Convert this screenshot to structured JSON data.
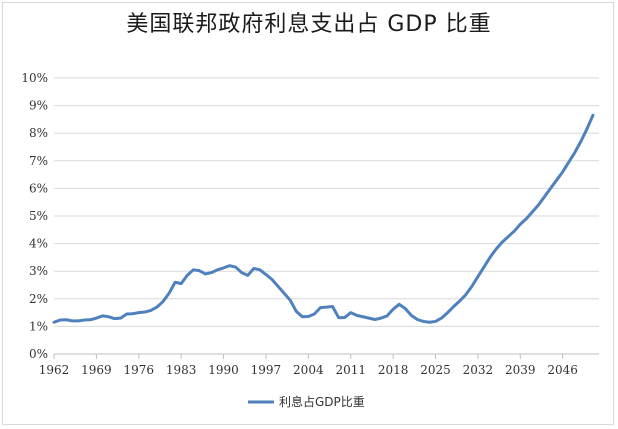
{
  "title": "美国联邦政府利息支出占 GDP 比重",
  "chart_data": {
    "type": "line",
    "title": "美国联邦政府利息支出占 GDP 比重",
    "xlabel": "",
    "ylabel": "",
    "xlim": [
      1962,
      2052
    ],
    "ylim": [
      0,
      10
    ],
    "y_ticks": [
      "0%",
      "1%",
      "2%",
      "3%",
      "4%",
      "5%",
      "6%",
      "7%",
      "8%",
      "9%",
      "10%"
    ],
    "x_ticks": [
      "1962",
      "1969",
      "1976",
      "1983",
      "1990",
      "1997",
      "2004",
      "2011",
      "2018",
      "2025",
      "2032",
      "2039",
      "2046"
    ],
    "grid": "horizontal",
    "legend": "bottom",
    "series": [
      {
        "name": "利息占GDP比重",
        "color": "#4f81bd",
        "x": [
          1962,
          1963,
          1964,
          1965,
          1966,
          1967,
          1968,
          1969,
          1970,
          1971,
          1972,
          1973,
          1974,
          1975,
          1976,
          1977,
          1978,
          1979,
          1980,
          1981,
          1982,
          1983,
          1984,
          1985,
          1986,
          1987,
          1988,
          1989,
          1990,
          1991,
          1992,
          1993,
          1994,
          1995,
          1996,
          1997,
          1998,
          1999,
          2000,
          2001,
          2002,
          2003,
          2004,
          2005,
          2006,
          2007,
          2008,
          2009,
          2010,
          2011,
          2012,
          2013,
          2014,
          2015,
          2016,
          2017,
          2018,
          2019,
          2020,
          2021,
          2022,
          2023,
          2024,
          2025,
          2026,
          2027,
          2028,
          2029,
          2030,
          2031,
          2032,
          2033,
          2034,
          2035,
          2036,
          2037,
          2038,
          2039,
          2040,
          2041,
          2042,
          2043,
          2044,
          2045,
          2046,
          2047,
          2048,
          2049,
          2050,
          2051
        ],
        "values": [
          1.15,
          1.23,
          1.24,
          1.2,
          1.2,
          1.23,
          1.24,
          1.3,
          1.38,
          1.35,
          1.28,
          1.3,
          1.45,
          1.46,
          1.5,
          1.52,
          1.58,
          1.7,
          1.9,
          2.2,
          2.6,
          2.55,
          2.85,
          3.05,
          3.02,
          2.9,
          2.95,
          3.05,
          3.12,
          3.2,
          3.15,
          2.95,
          2.85,
          3.1,
          3.05,
          2.88,
          2.7,
          2.45,
          2.2,
          1.95,
          1.55,
          1.35,
          1.36,
          1.45,
          1.68,
          1.7,
          1.72,
          1.32,
          1.32,
          1.5,
          1.4,
          1.35,
          1.3,
          1.25,
          1.3,
          1.38,
          1.62,
          1.8,
          1.65,
          1.4,
          1.25,
          1.18,
          1.15,
          1.18,
          1.3,
          1.5,
          1.72,
          1.92,
          2.15,
          2.45,
          2.8,
          3.15,
          3.5,
          3.8,
          4.05,
          4.25,
          4.45,
          4.7,
          4.9,
          5.15,
          5.4,
          5.7,
          6.0,
          6.3,
          6.6,
          6.95,
          7.3,
          7.7,
          8.15,
          8.65
        ]
      }
    ]
  }
}
